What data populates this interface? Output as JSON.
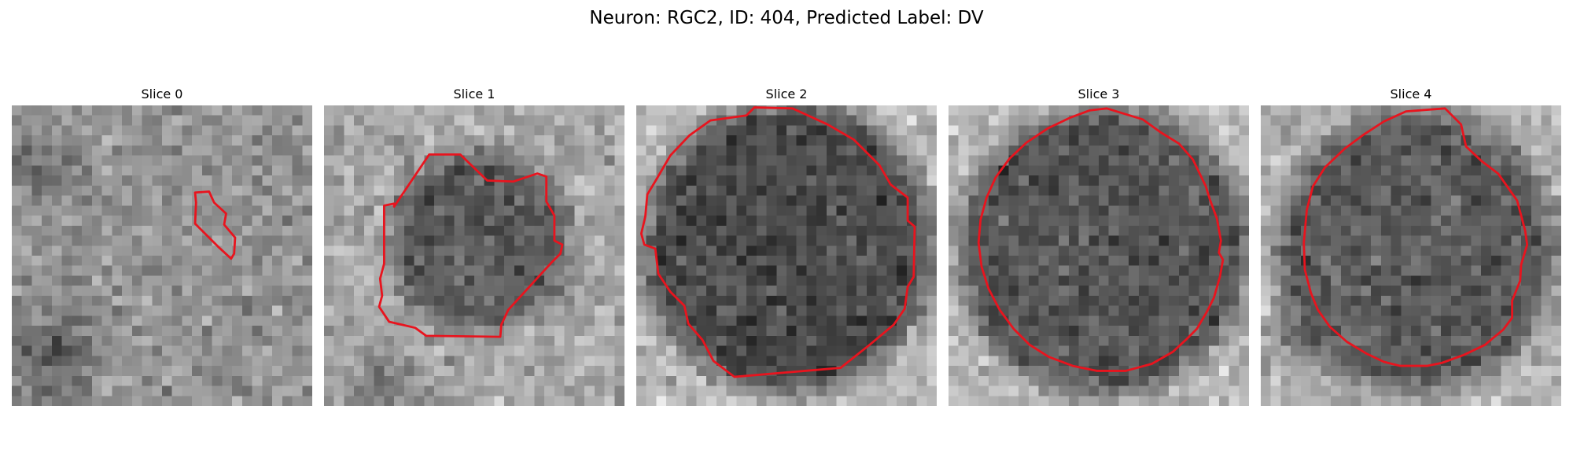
{
  "figure": {
    "title": "Neuron: RGC2, ID: 404, Predicted Label: DV",
    "contour_color": "#e8141e"
  },
  "panels": [
    {
      "title": "Slice 0"
    },
    {
      "title": "Slice 1"
    },
    {
      "title": "Slice 2"
    },
    {
      "title": "Slice 3"
    },
    {
      "title": "Slice 4"
    }
  ]
}
